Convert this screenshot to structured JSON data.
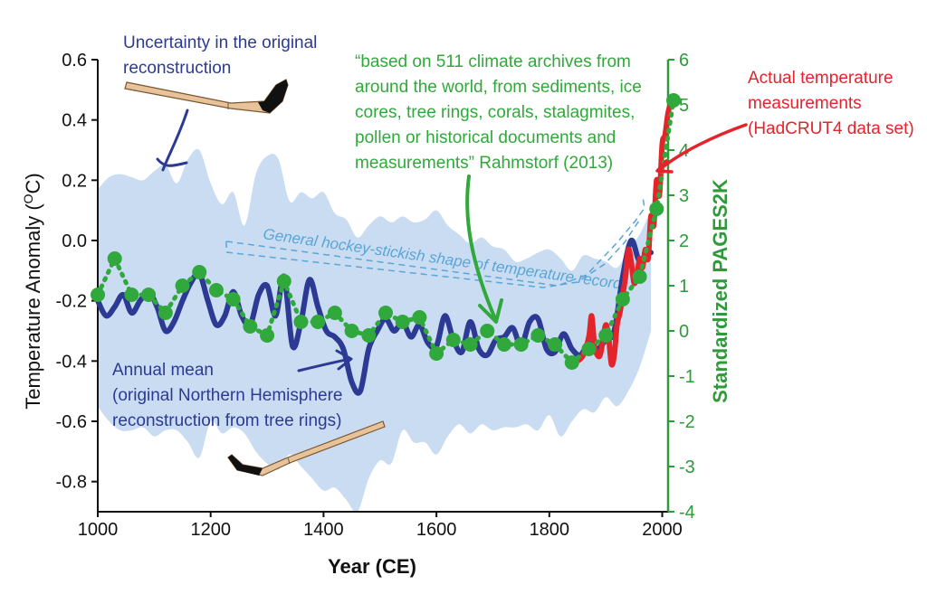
{
  "colors": {
    "uncertainty_band": "#c9dcf2",
    "annual_mean": "#2d3a94",
    "pages2k": "#31a83c",
    "pages2k_axis": "#2e9a3a",
    "hadcrut4": "#e3242b",
    "hockey_stick_text": "#5aa6d6",
    "stick_wood": "#e8c39a",
    "stick_tape": "#111111"
  },
  "annotations": {
    "uncertainty": [
      "Uncertainty in the original",
      "reconstruction"
    ],
    "quote": [
      "“based on 511 climate archives from",
      "around the world, from sediments, ice",
      "cores, tree rings, corals, stalagmites,",
      "pollen or historical documents and",
      "measurements” Rahmstorf (2013)"
    ],
    "actual": [
      "Actual temperature",
      "measurements",
      "(HadCRUT4 data set)"
    ],
    "annual_mean": [
      "Annual mean",
      "(original Northern Hemisphere",
      "reconstruction from tree rings)"
    ],
    "hockey_shape": "General hockey-stickish shape of temperature record"
  },
  "chart_data": {
    "type": "line",
    "xlabel": "Year (CE)",
    "ylabel": "Temperature Anomaly (",
    "ylabel_sup": "O",
    "ylabel_unit": "C)",
    "y2label": "Standardized PAGES2K",
    "xlim": [
      1000,
      2020
    ],
    "ylim": [
      -0.9,
      0.6
    ],
    "y2lim": [
      -4,
      6
    ],
    "x_ticks": [
      "1000",
      "1200",
      "1400",
      "1600",
      "1800",
      "2000"
    ],
    "y_ticks": [
      "0.6",
      "0.4",
      "0.2",
      "0.0",
      "-0.2",
      "-0.4",
      "-0.6",
      "-0.8"
    ],
    "y2_ticks": [
      "6",
      "5",
      "4",
      "3",
      "2",
      "1",
      "0",
      "-1",
      "-2",
      "-3",
      "-4"
    ],
    "series": [
      {
        "name": "Uncertainty in the original reconstruction",
        "kind": "band",
        "x": [
          1000,
          1020,
          1040,
          1060,
          1080,
          1100,
          1120,
          1140,
          1160,
          1180,
          1200,
          1220,
          1240,
          1260,
          1280,
          1300,
          1320,
          1340,
          1360,
          1380,
          1400,
          1420,
          1440,
          1460,
          1480,
          1500,
          1520,
          1540,
          1560,
          1580,
          1600,
          1620,
          1640,
          1660,
          1680,
          1700,
          1720,
          1740,
          1760,
          1780,
          1800,
          1820,
          1840,
          1860,
          1880,
          1900,
          1920,
          1940,
          1960,
          1980
        ],
        "upper": [
          0.17,
          0.21,
          0.22,
          0.21,
          0.2,
          0.23,
          0.25,
          0.19,
          0.27,
          0.3,
          0.19,
          0.12,
          0.16,
          0.05,
          0.22,
          0.28,
          0.27,
          0.13,
          0.16,
          0.14,
          0.16,
          0.09,
          0.07,
          0.01,
          0.05,
          0.08,
          0.06,
          0.08,
          0.06,
          0.07,
          0.1,
          0.05,
          0.02,
          -0.01,
          0.01,
          -0.02,
          -0.03,
          -0.07,
          -0.06,
          -0.04,
          -0.03,
          -0.06,
          -0.1,
          -0.05,
          -0.06,
          -0.07,
          -0.09,
          -0.03,
          0.02,
          0.1
        ],
        "lower": [
          -0.55,
          -0.6,
          -0.63,
          -0.63,
          -0.62,
          -0.65,
          -0.63,
          -0.63,
          -0.67,
          -0.72,
          -0.6,
          -0.64,
          -0.62,
          -0.64,
          -0.7,
          -0.74,
          -0.76,
          -0.71,
          -0.75,
          -0.79,
          -0.83,
          -0.82,
          -0.86,
          -0.9,
          -0.79,
          -0.73,
          -0.74,
          -0.63,
          -0.67,
          -0.67,
          -0.71,
          -0.65,
          -0.61,
          -0.64,
          -0.61,
          -0.63,
          -0.62,
          -0.62,
          -0.61,
          -0.63,
          -0.58,
          -0.65,
          -0.6,
          -0.56,
          -0.57,
          -0.52,
          -0.55,
          -0.5,
          -0.42,
          -0.3
        ]
      },
      {
        "name": "Annual mean (original Northern Hemisphere reconstruction from tree rings)",
        "kind": "line",
        "x": [
          1000,
          1015,
          1030,
          1045,
          1060,
          1075,
          1090,
          1105,
          1120,
          1135,
          1150,
          1165,
          1180,
          1195,
          1210,
          1225,
          1240,
          1255,
          1270,
          1285,
          1300,
          1315,
          1330,
          1345,
          1360,
          1375,
          1390,
          1405,
          1420,
          1435,
          1450,
          1465,
          1480,
          1495,
          1510,
          1525,
          1540,
          1555,
          1570,
          1585,
          1600,
          1615,
          1630,
          1645,
          1660,
          1675,
          1690,
          1705,
          1720,
          1735,
          1750,
          1765,
          1780,
          1795,
          1810,
          1825,
          1840,
          1855,
          1870,
          1885,
          1900,
          1915,
          1930,
          1945,
          1960,
          1975,
          1980
        ],
        "y": [
          -0.2,
          -0.25,
          -0.22,
          -0.18,
          -0.24,
          -0.2,
          -0.17,
          -0.22,
          -0.3,
          -0.27,
          -0.2,
          -0.14,
          -0.11,
          -0.2,
          -0.28,
          -0.25,
          -0.17,
          -0.25,
          -0.28,
          -0.18,
          -0.15,
          -0.25,
          -0.12,
          -0.35,
          -0.27,
          -0.13,
          -0.22,
          -0.3,
          -0.32,
          -0.36,
          -0.47,
          -0.5,
          -0.36,
          -0.3,
          -0.26,
          -0.3,
          -0.27,
          -0.32,
          -0.28,
          -0.34,
          -0.35,
          -0.25,
          -0.33,
          -0.37,
          -0.27,
          -0.36,
          -0.38,
          -0.33,
          -0.32,
          -0.29,
          -0.35,
          -0.27,
          -0.26,
          -0.36,
          -0.37,
          -0.31,
          -0.36,
          -0.38,
          -0.34,
          -0.36,
          -0.33,
          -0.3,
          -0.12,
          0.0,
          -0.07,
          -0.04,
          -0.04
        ]
      },
      {
        "name": "PAGES2K",
        "kind": "dots",
        "axis": "right",
        "x": [
          1000,
          1030,
          1060,
          1090,
          1120,
          1150,
          1180,
          1210,
          1240,
          1270,
          1300,
          1330,
          1360,
          1390,
          1420,
          1450,
          1480,
          1510,
          1540,
          1570,
          1600,
          1630,
          1660,
          1690,
          1720,
          1750,
          1780,
          1810,
          1840,
          1870,
          1900,
          1930,
          1960,
          1990,
          2020
        ],
        "y": [
          0.8,
          1.6,
          0.8,
          0.8,
          0.4,
          1.0,
          1.3,
          0.9,
          0.7,
          0.1,
          -0.1,
          1.1,
          0.2,
          0.2,
          0.4,
          0.0,
          -0.1,
          0.4,
          0.2,
          0.3,
          -0.5,
          -0.2,
          -0.3,
          0.0,
          -0.3,
          -0.3,
          -0.1,
          -0.3,
          -0.7,
          -0.4,
          -0.1,
          0.7,
          1.2,
          2.7,
          5.1
        ]
      },
      {
        "name": "HadCRUT4",
        "kind": "line",
        "x": [
          1850,
          1860,
          1870,
          1875,
          1880,
          1885,
          1890,
          1895,
          1900,
          1905,
          1910,
          1915,
          1920,
          1925,
          1930,
          1935,
          1940,
          1945,
          1950,
          1955,
          1960,
          1965,
          1970,
          1975,
          1980,
          1985,
          1990,
          1995,
          2000,
          2005,
          2010,
          2014
        ],
        "y": [
          -0.4,
          -0.38,
          -0.32,
          -0.25,
          -0.35,
          -0.38,
          -0.38,
          -0.33,
          -0.28,
          -0.32,
          -0.41,
          -0.38,
          -0.28,
          -0.24,
          -0.18,
          -0.12,
          -0.03,
          -0.07,
          -0.14,
          -0.12,
          -0.06,
          -0.09,
          -0.03,
          -0.06,
          0.08,
          0.05,
          0.2,
          0.15,
          0.32,
          0.35,
          0.42,
          0.45
        ]
      }
    ]
  }
}
